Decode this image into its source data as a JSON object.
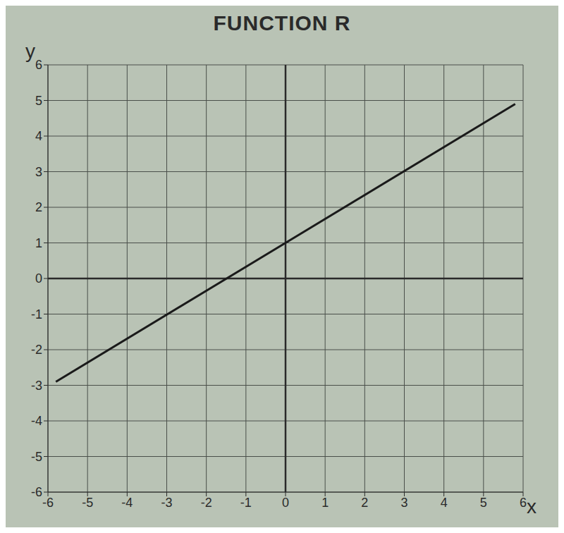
{
  "chart_data": {
    "type": "line",
    "title": "FUNCTION R",
    "x_label": "x",
    "y_label": "y",
    "x": [
      -5.8,
      0,
      5.8
    ],
    "values": [
      -2.9,
      1,
      4.9
    ],
    "color": "#1a1a1a",
    "xlim": [
      -6,
      6
    ],
    "ylim": [
      -6,
      6
    ],
    "xticks": [
      -6,
      -5,
      -4,
      -3,
      -2,
      -1,
      0,
      1,
      2,
      3,
      4,
      5,
      6
    ],
    "yticks": [
      -6,
      -5,
      -4,
      -3,
      -2,
      -1,
      0,
      1,
      2,
      3,
      4,
      5,
      6
    ],
    "grid": true
  }
}
